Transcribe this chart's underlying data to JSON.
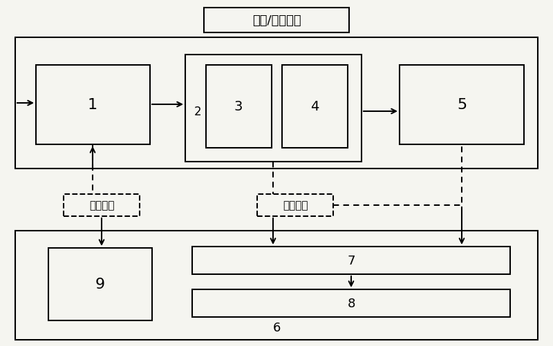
{
  "title": "直流/谐波电流",
  "label_control": "控制信号",
  "label_data": "数据信号",
  "labels": {
    "1": "1",
    "2": "2",
    "3": "3",
    "4": "4",
    "5": "5",
    "6": "6",
    "7": "7",
    "8": "8",
    "9": "9"
  },
  "bg_color": "#f5f5f0",
  "lw": 1.5
}
